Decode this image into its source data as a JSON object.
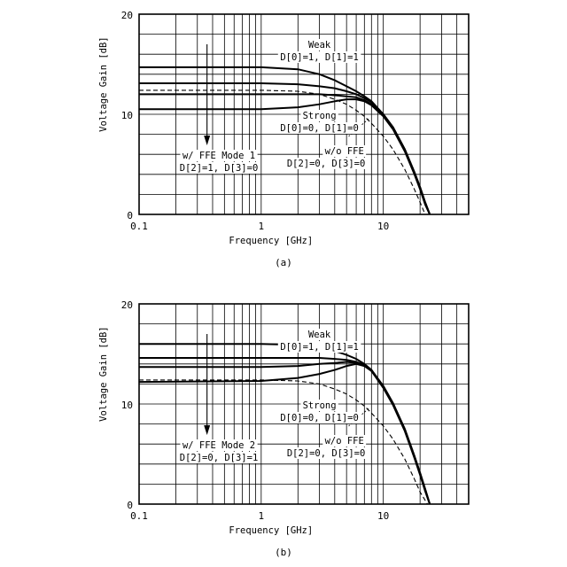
{
  "chart_data": [
    {
      "type": "line",
      "caption": "(a)",
      "xlabel": "Frequency [GHz]",
      "ylabel": "Voltage Gain [dB]",
      "xscale": "log",
      "xlim": [
        0.1,
        50
      ],
      "ylim": [
        0,
        20
      ],
      "x_ticks": [
        "0.1",
        "1",
        "10"
      ],
      "y_ticks": [
        "0",
        "10",
        "20"
      ],
      "grid": true,
      "annotations": {
        "weak": "Weak",
        "weak_setting": "D[0]=1, D[1]=1",
        "strong": "Strong",
        "strong_setting": "D[0]=0, D[1]=0",
        "mode": "w/ FFE Mode 1",
        "mode_setting": "D[2]=1, D[3]=0",
        "noffe": "w/o FFE",
        "noffe_setting": "D[2]=0, D[3]=0"
      },
      "series": [
        {
          "style": "solid",
          "x": [
            0.1,
            1,
            2,
            3,
            4,
            5,
            6,
            7,
            8,
            10,
            12,
            15,
            18,
            20,
            22,
            24
          ],
          "y": [
            14.7,
            14.7,
            14.5,
            14.0,
            13.4,
            12.8,
            12.3,
            11.8,
            11.3,
            10.0,
            8.7,
            6.5,
            4.2,
            2.7,
            1.2,
            0.0
          ]
        },
        {
          "style": "solid",
          "x": [
            0.1,
            1,
            2,
            3,
            4,
            5,
            6,
            7,
            8,
            10,
            12,
            15,
            18,
            20,
            22,
            24
          ],
          "y": [
            13.1,
            13.1,
            13.0,
            12.8,
            12.6,
            12.3,
            12.0,
            11.6,
            11.2,
            10.0,
            8.7,
            6.5,
            4.2,
            2.7,
            1.2,
            0.0
          ]
        },
        {
          "style": "solid",
          "x": [
            0.1,
            1,
            2,
            3,
            4,
            5,
            6,
            7,
            8,
            10,
            12,
            15,
            18,
            20,
            22,
            24
          ],
          "y": [
            12.0,
            12.0,
            12.0,
            12.0,
            11.9,
            11.8,
            11.7,
            11.4,
            11.0,
            9.9,
            8.6,
            6.4,
            4.1,
            2.6,
            1.1,
            0.0
          ]
        },
        {
          "style": "solid",
          "x": [
            0.1,
            1,
            2,
            3,
            4,
            5,
            6,
            7,
            8,
            10,
            12,
            15,
            18,
            20,
            22,
            24
          ],
          "y": [
            10.5,
            10.5,
            10.7,
            11.0,
            11.3,
            11.5,
            11.5,
            11.3,
            10.9,
            9.8,
            8.5,
            6.3,
            4.0,
            2.5,
            1.0,
            0.0
          ]
        },
        {
          "style": "dashed",
          "x": [
            0.1,
            1,
            2,
            3,
            4,
            5,
            6,
            7,
            8,
            10,
            12,
            15,
            18,
            20,
            22
          ],
          "y": [
            12.4,
            12.4,
            12.3,
            12.0,
            11.5,
            11.0,
            10.4,
            9.8,
            9.1,
            7.8,
            6.5,
            4.5,
            2.5,
            1.2,
            0.0
          ]
        }
      ]
    },
    {
      "type": "line",
      "caption": "(b)",
      "xlabel": "Frequency [GHz]",
      "ylabel": "Voltage Gain [dB]",
      "xscale": "log",
      "xlim": [
        0.1,
        50
      ],
      "ylim": [
        0,
        20
      ],
      "x_ticks": [
        "0.1",
        "1",
        "10"
      ],
      "y_ticks": [
        "0",
        "10",
        "20"
      ],
      "grid": true,
      "annotations": {
        "weak": "Weak",
        "weak_setting": "D[0]=1, D[1]=1",
        "strong": "Strong",
        "strong_setting": "D[0]=0, D[1]=0",
        "mode": "w/ FFE Mode 2",
        "mode_setting": "D[2]=0, D[3]=1",
        "noffe": "w/o FFE",
        "noffe_setting": "D[2]=0, D[3]=0"
      },
      "series": [
        {
          "style": "solid",
          "x": [
            0.1,
            1,
            2,
            3,
            4,
            5,
            6,
            7,
            8,
            10,
            12,
            15,
            18,
            20,
            22,
            24
          ],
          "y": [
            16.0,
            16.0,
            15.9,
            15.7,
            15.3,
            14.9,
            14.5,
            14.0,
            13.4,
            11.7,
            10.0,
            7.5,
            4.8,
            3.1,
            1.5,
            0.0
          ]
        },
        {
          "style": "solid",
          "x": [
            0.1,
            1,
            2,
            3,
            4,
            5,
            6,
            7,
            8,
            10,
            12,
            15,
            18,
            20,
            22,
            24
          ],
          "y": [
            14.6,
            14.6,
            14.6,
            14.6,
            14.5,
            14.4,
            14.2,
            13.9,
            13.4,
            11.8,
            10.1,
            7.5,
            4.8,
            3.1,
            1.5,
            0.0
          ]
        },
        {
          "style": "solid",
          "x": [
            0.1,
            1,
            2,
            3,
            4,
            5,
            6,
            7,
            8,
            10,
            12,
            15,
            18,
            20,
            22,
            24
          ],
          "y": [
            13.7,
            13.7,
            13.8,
            14.0,
            14.1,
            14.2,
            14.1,
            13.8,
            13.3,
            11.7,
            10.0,
            7.4,
            4.7,
            3.0,
            1.4,
            0.0
          ]
        },
        {
          "style": "solid",
          "x": [
            0.1,
            1,
            2,
            3,
            4,
            5,
            6,
            7,
            8,
            10,
            12,
            15,
            18,
            20,
            22,
            24
          ],
          "y": [
            12.2,
            12.3,
            12.6,
            13.0,
            13.4,
            13.8,
            14.0,
            13.8,
            13.3,
            11.6,
            9.9,
            7.3,
            4.6,
            2.9,
            1.3,
            0.0
          ]
        },
        {
          "style": "dashed",
          "x": [
            0.1,
            1,
            2,
            3,
            4,
            5,
            6,
            7,
            8,
            10,
            12,
            15,
            18,
            20,
            23
          ],
          "y": [
            12.4,
            12.4,
            12.3,
            12.0,
            11.5,
            11.0,
            10.4,
            9.8,
            9.1,
            7.8,
            6.5,
            4.5,
            2.5,
            1.2,
            0.0
          ]
        }
      ]
    }
  ]
}
